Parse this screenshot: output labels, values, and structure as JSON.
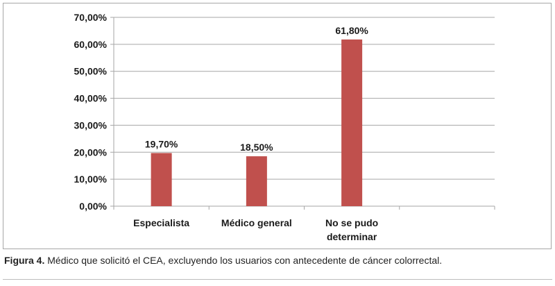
{
  "caption": {
    "label": "Figura 4.",
    "text": " Médico que solicitó el CEA, excluyendo los usuarios con antecedente de cáncer colorrectal."
  },
  "colors": {
    "bar": "#c0504d",
    "grid": "#a6a6a6",
    "text": "#1a1a1a"
  },
  "chart_data": {
    "type": "bar",
    "title": "",
    "xlabel": "",
    "ylabel": "",
    "categories": [
      [
        "Especialista"
      ],
      [
        "Médico general"
      ],
      [
        "No se pudo",
        "determinar"
      ],
      [
        ""
      ]
    ],
    "values": [
      19.7,
      18.5,
      61.8,
      null
    ],
    "data_labels": [
      "19,70%",
      "18,50%",
      "61,80%",
      ""
    ],
    "ylim": [
      0,
      70
    ],
    "yticks": [
      0,
      10,
      20,
      30,
      40,
      50,
      60,
      70
    ],
    "ytick_labels": [
      "0,00%",
      "10,00%",
      "20,00%",
      "30,00%",
      "40,00%",
      "50,00%",
      "60,00%",
      "70,00%"
    ],
    "grid": true,
    "legend": "none"
  }
}
